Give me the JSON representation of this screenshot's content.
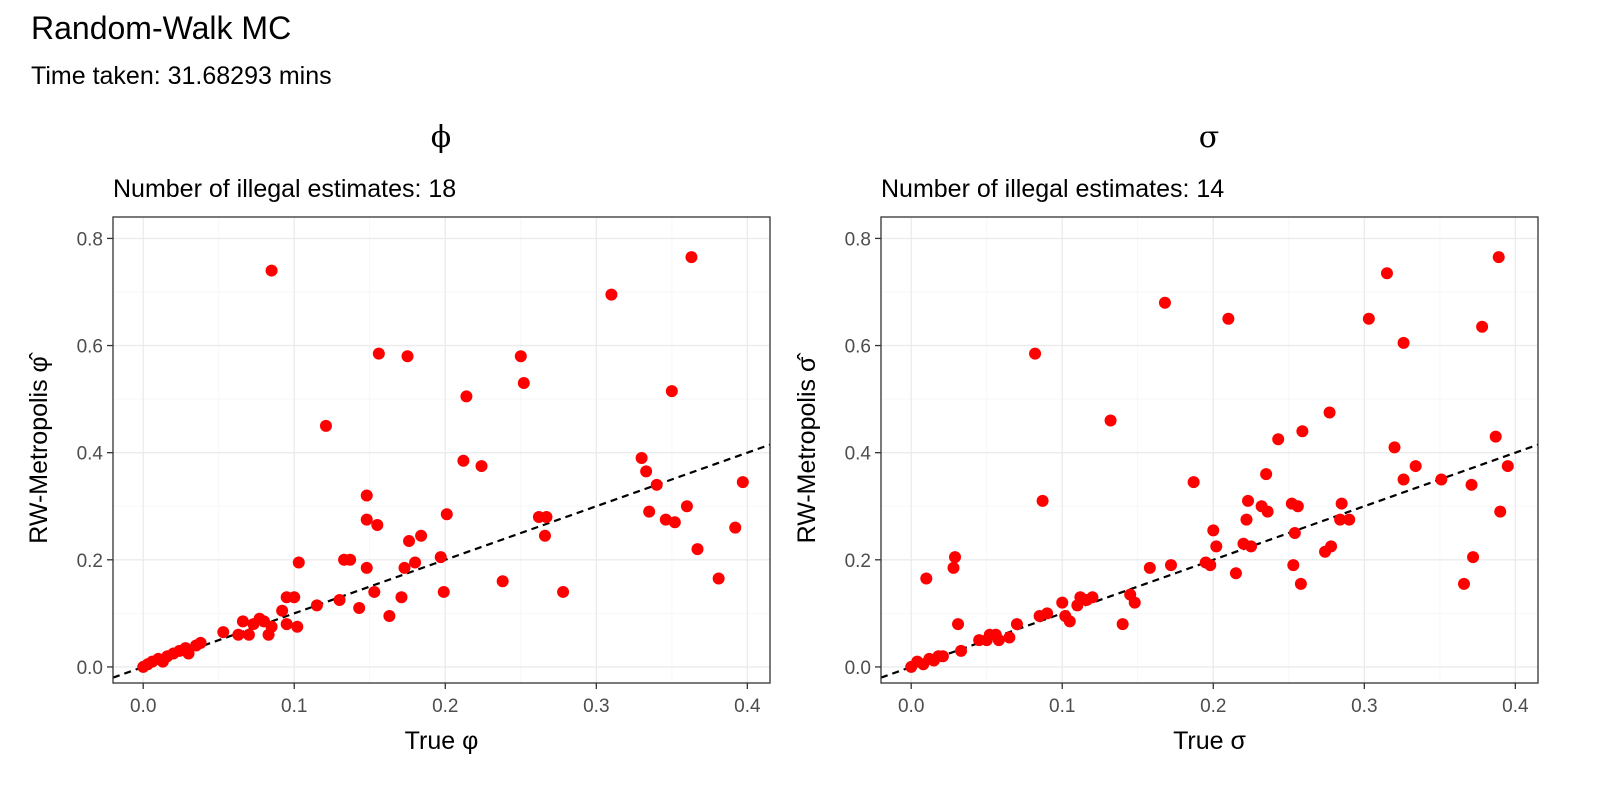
{
  "title": "Random-Walk MC",
  "subtitle": "Time taken: 31.68293 mins",
  "colors": {
    "point": "#ff0000",
    "reference_line": "#000000",
    "grid": "#ebebeb"
  },
  "chart_data": [
    {
      "type": "scatter",
      "facet_title": "ϕ",
      "subtitle": "Number of illegal estimates: 18",
      "xlabel": "True φ",
      "ylabel": "RW-Metropolis φ̂",
      "xlim": [
        -0.02,
        0.415
      ],
      "ylim": [
        -0.03,
        0.84
      ],
      "xticks": [
        0.0,
        0.1,
        0.2,
        0.3,
        0.4
      ],
      "xtick_labels": [
        "0.0",
        "0.1",
        "0.2",
        "0.3",
        "0.4"
      ],
      "yticks": [
        0.0,
        0.2,
        0.4,
        0.6,
        0.8
      ],
      "ytick_labels": [
        "0.0",
        "0.2",
        "0.4",
        "0.6",
        "0.8"
      ],
      "grid": true,
      "reference_line": {
        "intercept": 0,
        "slope": 1,
        "style": "dashed"
      },
      "points": [
        [
          0.0,
          0.0
        ],
        [
          0.003,
          0.005
        ],
        [
          0.006,
          0.01
        ],
        [
          0.01,
          0.015
        ],
        [
          0.013,
          0.01
        ],
        [
          0.016,
          0.02
        ],
        [
          0.02,
          0.025
        ],
        [
          0.024,
          0.03
        ],
        [
          0.028,
          0.035
        ],
        [
          0.03,
          0.025
        ],
        [
          0.035,
          0.04
        ],
        [
          0.038,
          0.045
        ],
        [
          0.053,
          0.065
        ],
        [
          0.063,
          0.06
        ],
        [
          0.066,
          0.085
        ],
        [
          0.07,
          0.06
        ],
        [
          0.073,
          0.08
        ],
        [
          0.077,
          0.09
        ],
        [
          0.08,
          0.085
        ],
        [
          0.083,
          0.06
        ],
        [
          0.085,
          0.075
        ],
        [
          0.092,
          0.105
        ],
        [
          0.095,
          0.13
        ],
        [
          0.095,
          0.08
        ],
        [
          0.1,
          0.13
        ],
        [
          0.102,
          0.075
        ],
        [
          0.103,
          0.195
        ],
        [
          0.085,
          0.74
        ],
        [
          0.115,
          0.115
        ],
        [
          0.121,
          0.45
        ],
        [
          0.13,
          0.125
        ],
        [
          0.133,
          0.2
        ],
        [
          0.137,
          0.2
        ],
        [
          0.143,
          0.11
        ],
        [
          0.148,
          0.32
        ],
        [
          0.148,
          0.275
        ],
        [
          0.148,
          0.185
        ],
        [
          0.153,
          0.14
        ],
        [
          0.155,
          0.265
        ],
        [
          0.156,
          0.585
        ],
        [
          0.163,
          0.095
        ],
        [
          0.171,
          0.13
        ],
        [
          0.173,
          0.185
        ],
        [
          0.175,
          0.58
        ],
        [
          0.176,
          0.235
        ],
        [
          0.18,
          0.195
        ],
        [
          0.184,
          0.245
        ],
        [
          0.197,
          0.205
        ],
        [
          0.199,
          0.14
        ],
        [
          0.201,
          0.285
        ],
        [
          0.212,
          0.385
        ],
        [
          0.214,
          0.505
        ],
        [
          0.224,
          0.375
        ],
        [
          0.238,
          0.16
        ],
        [
          0.25,
          0.58
        ],
        [
          0.252,
          0.53
        ],
        [
          0.262,
          0.28
        ],
        [
          0.266,
          0.245
        ],
        [
          0.267,
          0.28
        ],
        [
          0.278,
          0.14
        ],
        [
          0.31,
          0.695
        ],
        [
          0.33,
          0.39
        ],
        [
          0.333,
          0.365
        ],
        [
          0.335,
          0.29
        ],
        [
          0.34,
          0.34
        ],
        [
          0.346,
          0.275
        ],
        [
          0.35,
          0.515
        ],
        [
          0.352,
          0.27
        ],
        [
          0.36,
          0.3
        ],
        [
          0.363,
          0.765
        ],
        [
          0.367,
          0.22
        ],
        [
          0.381,
          0.165
        ],
        [
          0.392,
          0.26
        ],
        [
          0.397,
          0.345
        ]
      ]
    },
    {
      "type": "scatter",
      "facet_title": "σ",
      "subtitle": "Number of illegal estimates: 14",
      "xlabel": "True σ",
      "ylabel": "RW-Metropolis σ̂",
      "xlim": [
        -0.02,
        0.415
      ],
      "ylim": [
        -0.03,
        0.84
      ],
      "xticks": [
        0.0,
        0.1,
        0.2,
        0.3,
        0.4
      ],
      "xtick_labels": [
        "0.0",
        "0.1",
        "0.2",
        "0.3",
        "0.4"
      ],
      "yticks": [
        0.0,
        0.2,
        0.4,
        0.6,
        0.8
      ],
      "ytick_labels": [
        "0.0",
        "0.2",
        "0.4",
        "0.6",
        "0.8"
      ],
      "grid": true,
      "reference_line": {
        "intercept": 0,
        "slope": 1,
        "style": "dashed"
      },
      "points": [
        [
          0.0,
          0.0
        ],
        [
          0.004,
          0.01
        ],
        [
          0.008,
          0.005
        ],
        [
          0.01,
          0.165
        ],
        [
          0.012,
          0.015
        ],
        [
          0.015,
          0.012
        ],
        [
          0.018,
          0.02
        ],
        [
          0.021,
          0.02
        ],
        [
          0.028,
          0.185
        ],
        [
          0.029,
          0.205
        ],
        [
          0.031,
          0.08
        ],
        [
          0.033,
          0.03
        ],
        [
          0.045,
          0.05
        ],
        [
          0.05,
          0.05
        ],
        [
          0.052,
          0.06
        ],
        [
          0.056,
          0.06
        ],
        [
          0.058,
          0.05
        ],
        [
          0.065,
          0.055
        ],
        [
          0.07,
          0.08
        ],
        [
          0.082,
          0.585
        ],
        [
          0.085,
          0.095
        ],
        [
          0.087,
          0.31
        ],
        [
          0.09,
          0.1
        ],
        [
          0.1,
          0.12
        ],
        [
          0.102,
          0.095
        ],
        [
          0.105,
          0.085
        ],
        [
          0.11,
          0.115
        ],
        [
          0.112,
          0.13
        ],
        [
          0.116,
          0.125
        ],
        [
          0.12,
          0.13
        ],
        [
          0.132,
          0.46
        ],
        [
          0.14,
          0.08
        ],
        [
          0.145,
          0.135
        ],
        [
          0.148,
          0.12
        ],
        [
          0.158,
          0.185
        ],
        [
          0.168,
          0.68
        ],
        [
          0.172,
          0.19
        ],
        [
          0.187,
          0.345
        ],
        [
          0.195,
          0.195
        ],
        [
          0.198,
          0.19
        ],
        [
          0.2,
          0.255
        ],
        [
          0.202,
          0.225
        ],
        [
          0.21,
          0.65
        ],
        [
          0.215,
          0.175
        ],
        [
          0.22,
          0.23
        ],
        [
          0.222,
          0.275
        ],
        [
          0.223,
          0.31
        ],
        [
          0.225,
          0.225
        ],
        [
          0.232,
          0.3
        ],
        [
          0.235,
          0.36
        ],
        [
          0.236,
          0.29
        ],
        [
          0.243,
          0.425
        ],
        [
          0.252,
          0.305
        ],
        [
          0.253,
          0.19
        ],
        [
          0.254,
          0.25
        ],
        [
          0.256,
          0.3
        ],
        [
          0.258,
          0.155
        ],
        [
          0.259,
          0.44
        ],
        [
          0.274,
          0.215
        ],
        [
          0.277,
          0.475
        ],
        [
          0.278,
          0.225
        ],
        [
          0.284,
          0.275
        ],
        [
          0.285,
          0.305
        ],
        [
          0.29,
          0.275
        ],
        [
          0.303,
          0.65
        ],
        [
          0.315,
          0.735
        ],
        [
          0.32,
          0.41
        ],
        [
          0.326,
          0.35
        ],
        [
          0.326,
          0.605
        ],
        [
          0.334,
          0.375
        ],
        [
          0.351,
          0.35
        ],
        [
          0.366,
          0.155
        ],
        [
          0.371,
          0.34
        ],
        [
          0.372,
          0.205
        ],
        [
          0.378,
          0.635
        ],
        [
          0.387,
          0.43
        ],
        [
          0.389,
          0.765
        ],
        [
          0.39,
          0.29
        ],
        [
          0.395,
          0.375
        ]
      ]
    }
  ]
}
